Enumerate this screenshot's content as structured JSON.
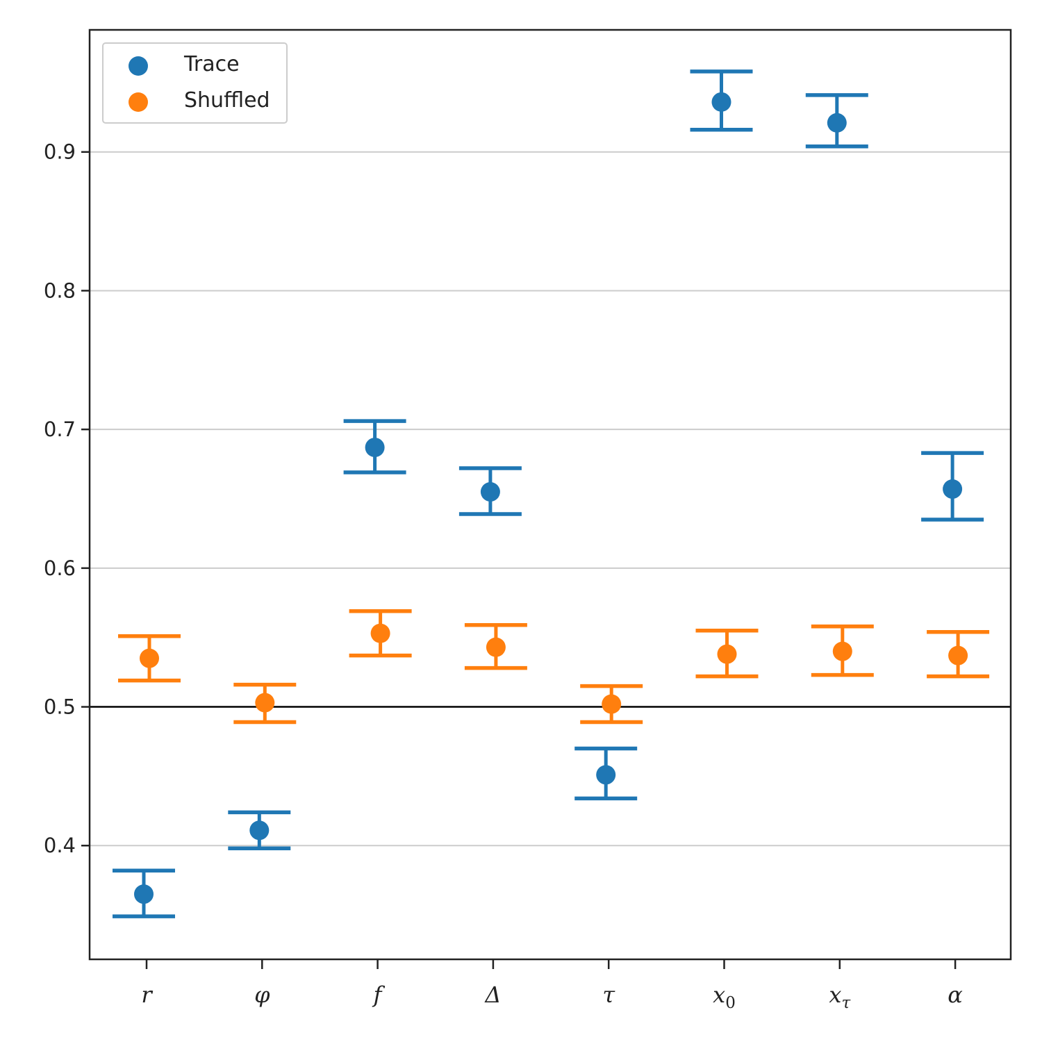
{
  "chart_data": {
    "type": "scatter",
    "title": "",
    "xlabel": "",
    "ylabel": "",
    "categories": [
      "r",
      "φ",
      "f",
      "Δ",
      "τ",
      "x0",
      "xτ",
      "α"
    ],
    "category_labels": [
      {
        "base": "r",
        "sub": ""
      },
      {
        "base": "φ",
        "sub": ""
      },
      {
        "base": "f",
        "sub": ""
      },
      {
        "base": "Δ",
        "sub": ""
      },
      {
        "base": "τ",
        "sub": ""
      },
      {
        "base": "x",
        "sub": "0"
      },
      {
        "base": "x",
        "sub": "τ"
      },
      {
        "base": "α",
        "sub": ""
      }
    ],
    "yticks": [
      "0.4",
      "0.5",
      "0.6",
      "0.7",
      "0.8",
      "0.9"
    ],
    "ylim": [
      0.318,
      0.988
    ],
    "reference_line": 0.5,
    "grid": "horizontal",
    "legend_position": "top-left",
    "series": [
      {
        "name": "Trace",
        "color": "#1f77b4",
        "values": [
          0.365,
          0.411,
          0.687,
          0.655,
          0.451,
          0.936,
          0.921,
          0.657
        ],
        "lower": [
          0.349,
          0.398,
          0.669,
          0.639,
          0.434,
          0.916,
          0.904,
          0.635
        ],
        "upper": [
          0.382,
          0.424,
          0.706,
          0.672,
          0.47,
          0.958,
          0.941,
          0.683
        ]
      },
      {
        "name": "Shuffled",
        "color": "#ff7f0e",
        "values": [
          0.535,
          0.503,
          0.553,
          0.543,
          0.502,
          0.538,
          0.54,
          0.537
        ],
        "lower": [
          0.519,
          0.489,
          0.537,
          0.528,
          0.489,
          0.522,
          0.523,
          0.522
        ],
        "upper": [
          0.551,
          0.516,
          0.569,
          0.559,
          0.515,
          0.555,
          0.558,
          0.554
        ]
      }
    ]
  }
}
